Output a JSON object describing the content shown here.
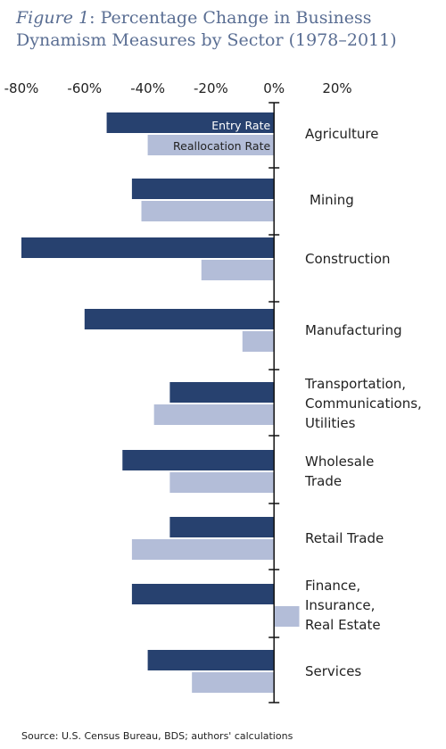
{
  "figure_label": "Figure 1",
  "title_rest": ": Percentage Change in Business Dynamism Measures by Sector (1978–2011)",
  "source": "Source: U.S. Census Bureau, BDS; authors' calculations",
  "chart_data": {
    "type": "bar",
    "orientation": "horizontal",
    "title": "Figure 1: Percentage Change in Business Dynamism Measures by Sector (1978–2011)",
    "xlim": [
      -80,
      20
    ],
    "x_ticks": [
      "-80%",
      "-60%",
      "-40%",
      "-20%",
      "0%",
      "20%"
    ],
    "x_tick_values": [
      -80,
      -60,
      -40,
      -20,
      0,
      20
    ],
    "categories": [
      [
        "Agriculture"
      ],
      [
        "Mining"
      ],
      [
        "Construction"
      ],
      [
        "Manufacturing"
      ],
      [
        "Transportation,",
        "Communications,",
        "Utilities"
      ],
      [
        "Wholesale",
        "Trade"
      ],
      [
        "Retail Trade"
      ],
      [
        "Finance,",
        "Insurance,",
        "Real Estate"
      ],
      [
        "Services"
      ]
    ],
    "series": [
      {
        "name": "Entry Rate",
        "color": "#27416f",
        "values": [
          -53,
          -45,
          -80,
          -60,
          -33,
          -48,
          -33,
          -45,
          -40
        ]
      },
      {
        "name": "Reallocation Rate",
        "color": "#b3bdd8",
        "values": [
          -40,
          -42,
          -23,
          -10,
          -38,
          -33,
          -45,
          8,
          -26
        ]
      }
    ],
    "legend": "inside-bars"
  }
}
